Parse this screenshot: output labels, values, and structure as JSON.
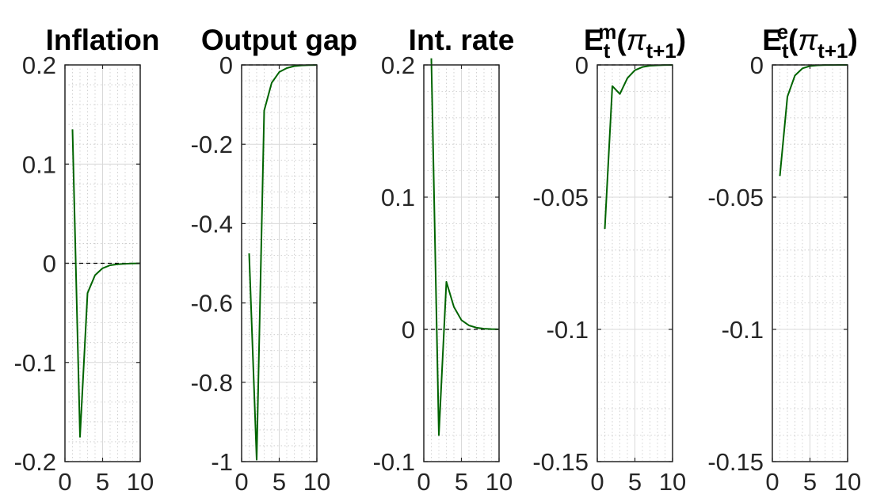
{
  "figure": {
    "series_color": "#006400",
    "zero_line_color": "#000000",
    "grid": true,
    "minor_grid": true,
    "legend": "none"
  },
  "chart_data": [
    {
      "type": "line",
      "title": "Inflation",
      "title_parts": [
        {
          "t": "Inflation",
          "k": "n"
        }
      ],
      "xlabel": "",
      "ylabel": "",
      "xlim": [
        0,
        10
      ],
      "ylim": [
        -0.2,
        0.2
      ],
      "xticks": [
        0,
        5,
        10
      ],
      "xtick_labels": [
        "0",
        "5",
        "10"
      ],
      "yticks": [
        -0.2,
        -0.1,
        0,
        0.1,
        0.2
      ],
      "ytick_labels": [
        "-0.2",
        "-0.1",
        "0",
        "0.1",
        "0.2"
      ],
      "zero_line": true,
      "x": [
        1,
        2,
        3,
        4,
        5,
        6,
        7,
        8,
        9,
        10
      ],
      "series": [
        {
          "values": [
            0.135,
            -0.175,
            -0.03,
            -0.012,
            -0.005,
            -0.002,
            -0.001,
            -0.0005,
            -0.0002,
            -0.0001
          ]
        }
      ]
    },
    {
      "type": "line",
      "title": "Output gap",
      "title_parts": [
        {
          "t": "Output gap",
          "k": "n"
        }
      ],
      "xlabel": "",
      "ylabel": "",
      "xlim": [
        0,
        10
      ],
      "ylim": [
        -1,
        0
      ],
      "xticks": [
        0,
        5,
        10
      ],
      "xtick_labels": [
        "0",
        "5",
        "10"
      ],
      "yticks": [
        -1,
        -0.8,
        -0.6,
        -0.4,
        -0.2,
        0
      ],
      "ytick_labels": [
        "-1",
        "-0.8",
        "-0.6",
        "-0.4",
        "-0.2",
        "0"
      ],
      "zero_line": true,
      "x": [
        1,
        2,
        3,
        4,
        5,
        6,
        7,
        8,
        9,
        10
      ],
      "series": [
        {
          "values": [
            -0.475,
            -0.995,
            -0.115,
            -0.045,
            -0.018,
            -0.008,
            -0.003,
            -0.0013,
            -0.0005,
            -0.0002
          ]
        }
      ]
    },
    {
      "type": "line",
      "title": "Int. rate",
      "title_parts": [
        {
          "t": "Int. rate",
          "k": "n"
        }
      ],
      "xlabel": "",
      "ylabel": "",
      "xlim": [
        0,
        10
      ],
      "ylim": [
        -0.1,
        0.2
      ],
      "xticks": [
        0,
        5,
        10
      ],
      "xtick_labels": [
        "0",
        "5",
        "10"
      ],
      "yticks": [
        -0.1,
        0,
        0.1,
        0.2
      ],
      "ytick_labels": [
        "-0.1",
        "0",
        "0.1",
        "0.2"
      ],
      "zero_line": true,
      "x": [
        1,
        2,
        3,
        4,
        5,
        6,
        7,
        8,
        9,
        10
      ],
      "series": [
        {
          "values": [
            0.205,
            -0.08,
            0.036,
            0.017,
            0.007,
            0.003,
            0.0013,
            0.0005,
            0.0002,
            0.0001
          ]
        }
      ]
    },
    {
      "type": "line",
      "title": "Et m(πt+1)",
      "title_parts": [
        {
          "t": "E",
          "k": "n"
        },
        {
          "t": "t",
          "k": "sub"
        },
        {
          "t": "m",
          "k": "sup"
        },
        {
          "t": "(",
          "k": "n"
        },
        {
          "t": "π",
          "k": "i"
        },
        {
          "t": "t+1",
          "k": "sub"
        },
        {
          "t": ")",
          "k": "n"
        }
      ],
      "xlabel": "",
      "ylabel": "",
      "xlim": [
        0,
        10
      ],
      "ylim": [
        -0.15,
        0
      ],
      "xticks": [
        0,
        5,
        10
      ],
      "xtick_labels": [
        "0",
        "5",
        "10"
      ],
      "yticks": [
        -0.15,
        -0.1,
        -0.05,
        0
      ],
      "ytick_labels": [
        "-0.15",
        "-0.1",
        "-0.05",
        "0"
      ],
      "zero_line": true,
      "x": [
        1,
        2,
        3,
        4,
        5,
        6,
        7,
        8,
        9,
        10
      ],
      "series": [
        {
          "values": [
            -0.062,
            -0.008,
            -0.011,
            -0.005,
            -0.002,
            -0.0008,
            -0.0003,
            -0.00015,
            -5e-05,
            -2e-05
          ]
        }
      ]
    },
    {
      "type": "line",
      "title": "Et e(πt+1)",
      "title_parts": [
        {
          "t": "E",
          "k": "n"
        },
        {
          "t": "t",
          "k": "sub"
        },
        {
          "t": "e",
          "k": "sup"
        },
        {
          "t": "(",
          "k": "n"
        },
        {
          "t": "π",
          "k": "i"
        },
        {
          "t": "t+1",
          "k": "sub"
        },
        {
          "t": ")",
          "k": "n"
        }
      ],
      "xlabel": "",
      "ylabel": "",
      "xlim": [
        0,
        10
      ],
      "ylim": [
        -0.15,
        0
      ],
      "xticks": [
        0,
        5,
        10
      ],
      "xtick_labels": [
        "0",
        "5",
        "10"
      ],
      "yticks": [
        -0.15,
        -0.1,
        -0.05,
        0
      ],
      "ytick_labels": [
        "-0.15",
        "-0.1",
        "-0.05",
        "0"
      ],
      "zero_line": true,
      "x": [
        1,
        2,
        3,
        4,
        5,
        6,
        7,
        8,
        9,
        10
      ],
      "series": [
        {
          "values": [
            -0.042,
            -0.012,
            -0.004,
            -0.0013,
            -0.0004,
            -0.00015,
            -5e-05,
            -2e-05,
            -1e-05,
            0
          ]
        }
      ]
    }
  ]
}
